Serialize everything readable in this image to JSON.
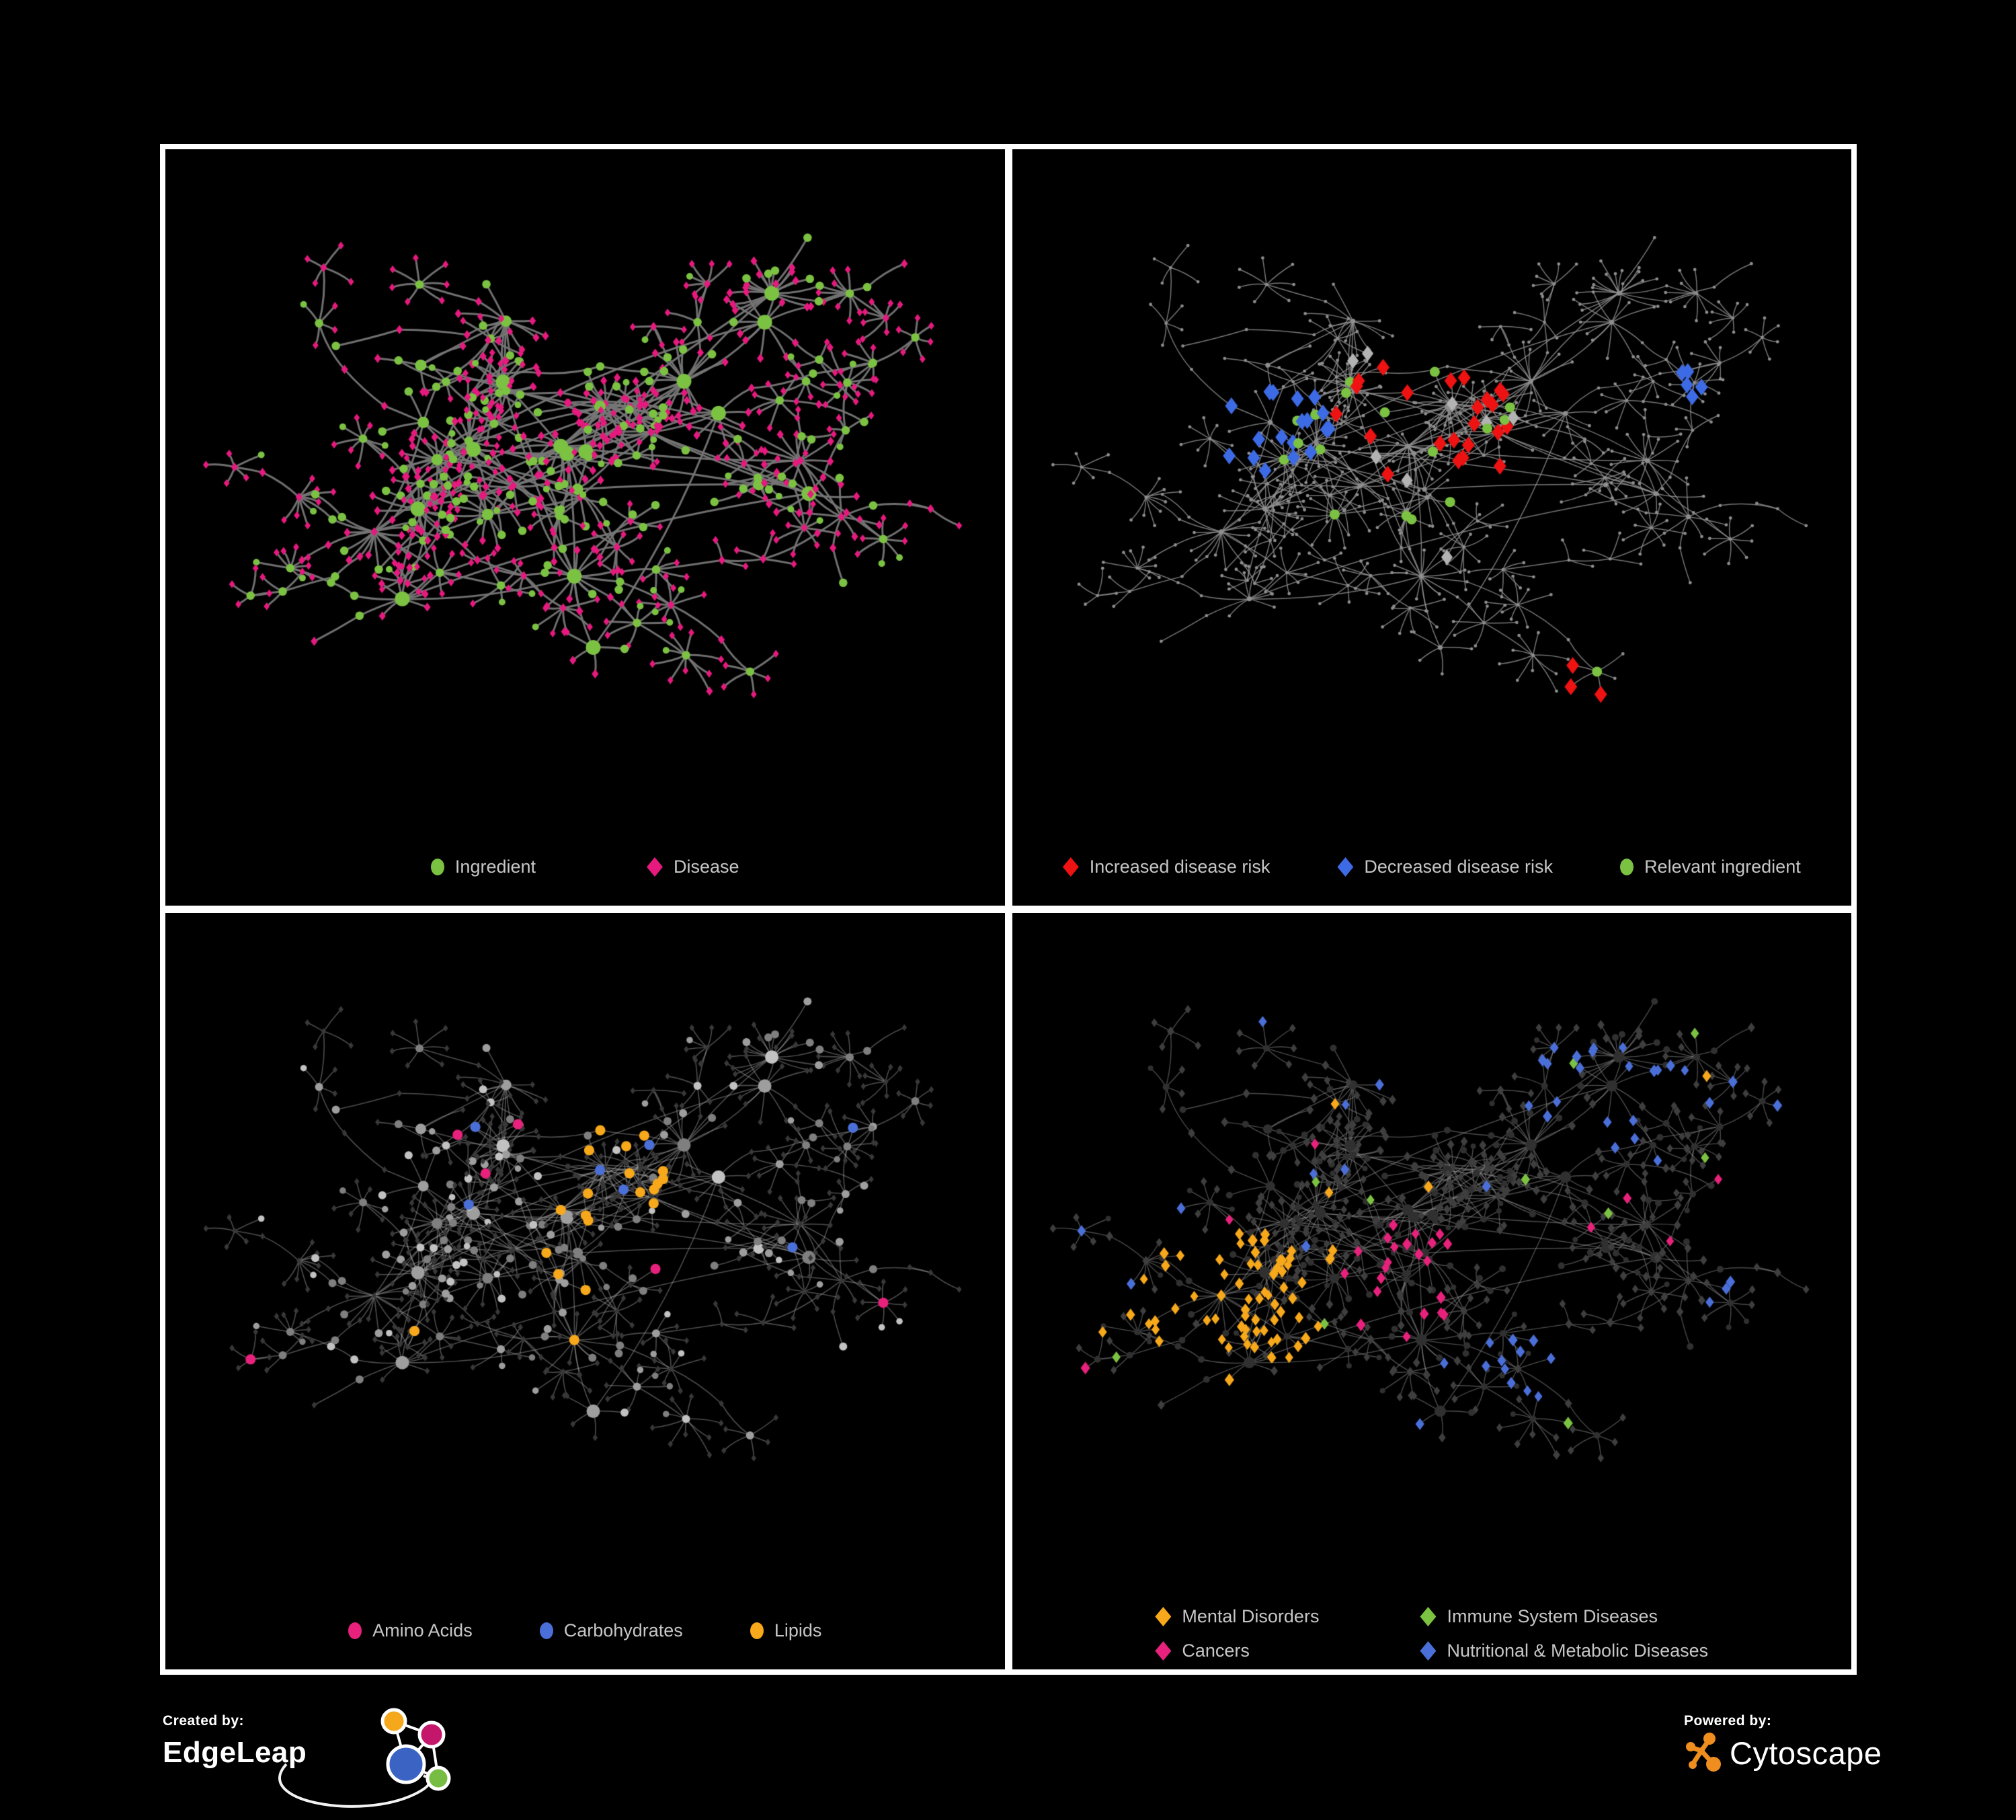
{
  "figure": {
    "background": "#000000",
    "frame_color": "#FFFFFF",
    "legend_text_color": "#C6C6C6"
  },
  "panels": [
    {
      "id": "ingredient-disease",
      "legend_layout": "row-wide",
      "legend": [
        {
          "label": "Ingredient",
          "shape": "circle",
          "color": "#7CC242"
        },
        {
          "label": "Disease",
          "shape": "diamond",
          "color": "#E6197E"
        }
      ]
    },
    {
      "id": "disease-risk",
      "legend_layout": "row",
      "legend": [
        {
          "label": "Increased disease risk",
          "shape": "diamond",
          "color": "#EE1212"
        },
        {
          "label": "Decreased disease risk",
          "shape": "diamond",
          "color": "#3D6BE5"
        },
        {
          "label": "Relevant ingredient",
          "shape": "circle",
          "color": "#7CC242"
        }
      ]
    },
    {
      "id": "nutrient-groups",
      "legend_layout": "row",
      "legend": [
        {
          "label": "Amino Acids",
          "shape": "circle",
          "color": "#E8217C"
        },
        {
          "label": "Carbohydrates",
          "shape": "circle",
          "color": "#4A6FD8"
        },
        {
          "label": "Lipids",
          "shape": "circle",
          "color": "#F7A81B"
        }
      ]
    },
    {
      "id": "disease-categories",
      "legend_layout": "grid-2x2",
      "legend": [
        {
          "label": "Mental Disorders",
          "shape": "diamond",
          "color": "#F7A81B"
        },
        {
          "label": "Immune System Diseases",
          "shape": "diamond",
          "color": "#7CC242"
        },
        {
          "label": "Cancers",
          "shape": "diamond",
          "color": "#E8217C"
        },
        {
          "label": "Nutritional & Metabolic Diseases",
          "shape": "diamond",
          "color": "#4A6FD8"
        }
      ]
    }
  ],
  "network_style": {
    "ingredient_green": "#7CC242",
    "disease_pink": "#E6197E",
    "risk_red": "#EE1212",
    "risk_blue": "#3D6BE5",
    "neutral_diamond_gray": "#B3B3B3",
    "amino_pink": "#E8217C",
    "carb_blue": "#4A6FD8",
    "lipid_orange": "#F7A81B",
    "edge_gray": "#767676",
    "dim_node_gray": "#8E8E8E",
    "dark_diamond": "#3E3E3E",
    "dark_circle": "#303030"
  },
  "footer": {
    "created_by": "Created by:",
    "brand_left": "EdgeLeap",
    "powered_by": "Powered by:",
    "brand_right": "Cytoscape",
    "edgeleap_colors": {
      "orange": "#F5A81C",
      "magenta": "#C4166B",
      "blue": "#3B63C4",
      "green": "#77BC43"
    },
    "cytoscape_orange": "#EF8E1F"
  }
}
